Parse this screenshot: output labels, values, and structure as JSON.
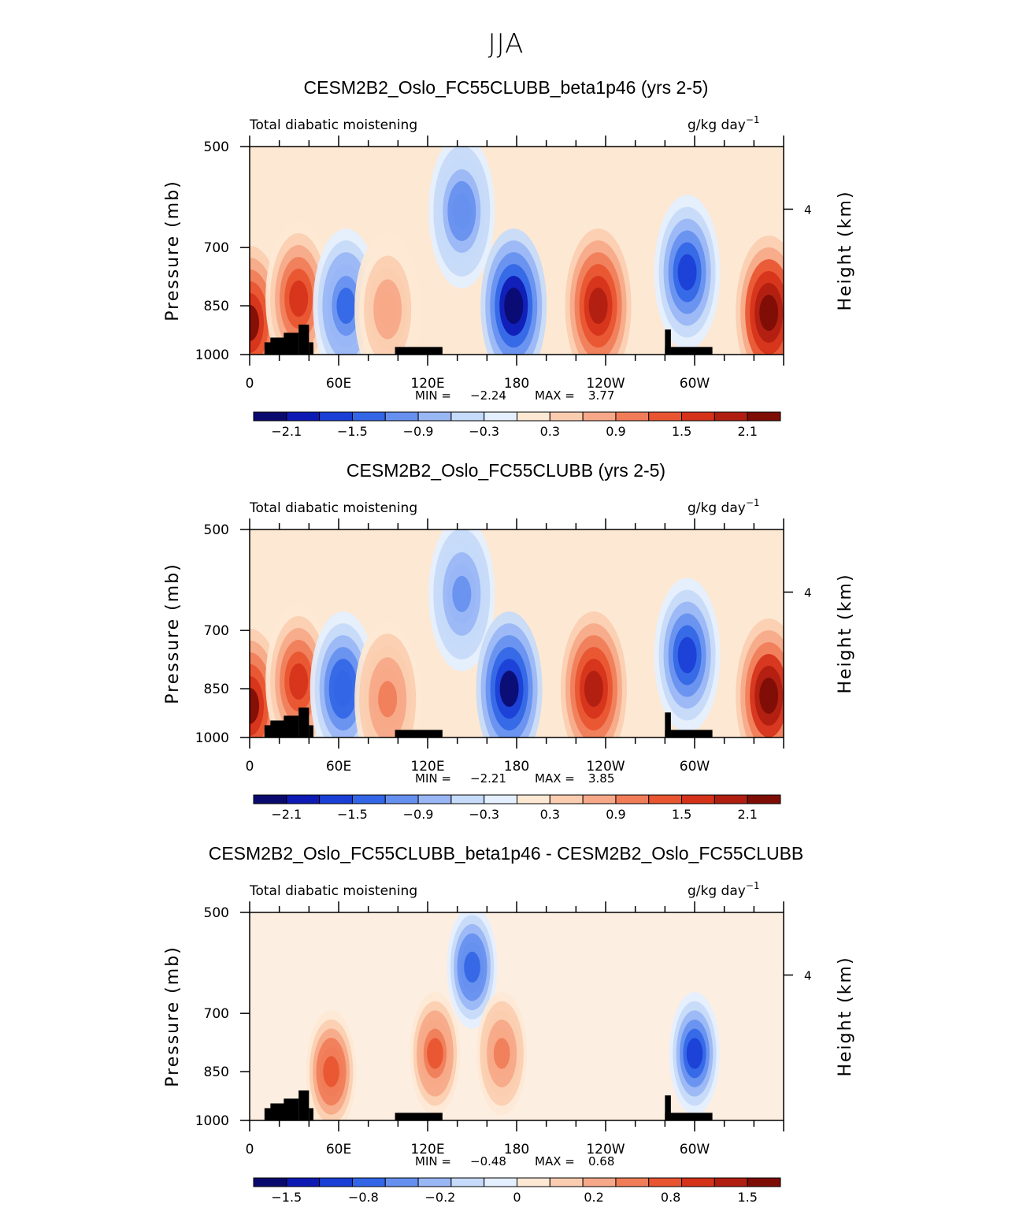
{
  "figure_title": "JJA",
  "panels": [
    {
      "title": "CESM2B2_Oslo_FC55CLUBB_beta1p46 (yrs 2-5)",
      "left_label": "Total diabatic moistening",
      "units": "g/kg day",
      "units_exp": "−1",
      "stats": {
        "min_label": "MIN =",
        "min": "−2.24",
        "max_label": "MAX =",
        "max": "3.77"
      }
    },
    {
      "title": "CESM2B2_Oslo_FC55CLUBB (yrs 2-5)",
      "left_label": "Total diabatic moistening",
      "units": "g/kg day",
      "units_exp": "−1",
      "stats": {
        "min_label": "MIN =",
        "min": "−2.21",
        "max_label": "MAX =",
        "max": "3.85"
      }
    },
    {
      "title": "CESM2B2_Oslo_FC55CLUBB_beta1p46 - CESM2B2_Oslo_FC55CLUBB",
      "left_label": "Total diabatic moistening",
      "units": "g/kg day",
      "units_exp": "−1",
      "stats": {
        "min_label": "MIN =",
        "min": "−0.48",
        "max_label": "MAX =",
        "max": "0.68"
      }
    }
  ],
  "axes": {
    "y_left_label": "Pressure (mb)",
    "y_right_label": "Height (km)",
    "y_ticks": [
      "500",
      "700",
      "850",
      "1000"
    ],
    "y_right_ticks": [
      "4"
    ],
    "x_ticks": [
      "0",
      "60E",
      "120E",
      "180",
      "120W",
      "60W"
    ]
  },
  "colorbar": {
    "colors": [
      "#0a0a6e",
      "#0d1ab4",
      "#1a3fd6",
      "#3366e6",
      "#6690ef",
      "#99b6f5",
      "#c6daf9",
      "#e4efff",
      "#fde8d4",
      "#fbcdb0",
      "#f6a888",
      "#f07d58",
      "#e85530",
      "#d5321a",
      "#b01e10",
      "#7d0d05"
    ],
    "labels_main": [
      "−2.1",
      "−1.5",
      "−0.9",
      "−0.3",
      "0.3",
      "0.9",
      "1.5",
      "2.1"
    ],
    "labels_diff": [
      "−1.5",
      "−0.8",
      "−0.2",
      "0",
      "0.2",
      "0.8",
      "1.5"
    ]
  },
  "chart_data": [
    {
      "type": "heatmap",
      "title": "CESM2B2_Oslo_FC55CLUBB_beta1p46 (yrs 2-5)",
      "x": "longitude (0 to 360)",
      "y": "pressure (mb)",
      "ylim": [
        1000,
        500
      ],
      "min": -2.24,
      "max": 3.77,
      "contour_levels": [
        -2.4,
        -2.1,
        -1.8,
        -1.5,
        -1.2,
        -0.9,
        -0.6,
        -0.3,
        0,
        0.3,
        0.6,
        0.9,
        1.2,
        1.5,
        1.8,
        2.1,
        2.4
      ],
      "blobs": [
        {
          "lon": 0,
          "p": 900,
          "value": 2.1
        },
        {
          "lon": 33,
          "p": 830,
          "value": 1.6
        },
        {
          "lon": 65,
          "p": 850,
          "value": -1.3
        },
        {
          "lon": 93,
          "p": 860,
          "value": 0.8
        },
        {
          "lon": 143,
          "p": 620,
          "value": -1.1
        },
        {
          "lon": 178,
          "p": 850,
          "value": -2.2
        },
        {
          "lon": 235,
          "p": 850,
          "value": 1.8
        },
        {
          "lon": 295,
          "p": 760,
          "value": -1.8
        },
        {
          "lon": 350,
          "p": 870,
          "value": 2.4
        }
      ]
    },
    {
      "type": "heatmap",
      "title": "CESM2B2_Oslo_FC55CLUBB (yrs 2-5)",
      "x": "longitude (0 to 360)",
      "y": "pressure (mb)",
      "ylim": [
        1000,
        500
      ],
      "min": -2.21,
      "max": 3.85,
      "blobs": [
        {
          "lon": 0,
          "p": 900,
          "value": 2.1
        },
        {
          "lon": 33,
          "p": 830,
          "value": 1.6
        },
        {
          "lon": 63,
          "p": 850,
          "value": -1.5
        },
        {
          "lon": 93,
          "p": 880,
          "value": 0.9
        },
        {
          "lon": 143,
          "p": 620,
          "value": -1.0
        },
        {
          "lon": 175,
          "p": 850,
          "value": -2.1
        },
        {
          "lon": 232,
          "p": 850,
          "value": 1.9
        },
        {
          "lon": 295,
          "p": 760,
          "value": -1.7
        },
        {
          "lon": 350,
          "p": 870,
          "value": 2.3
        }
      ]
    },
    {
      "type": "heatmap",
      "title": "CESM2B2_Oslo_FC55CLUBB_beta1p46 - CESM2B2_Oslo_FC55CLUBB",
      "x": "longitude (0 to 360)",
      "y": "pressure (mb)",
      "ylim": [
        1000,
        500
      ],
      "min": -0.48,
      "max": 0.68,
      "contour_levels": [
        -1.5,
        -1.2,
        -0.8,
        -0.5,
        -0.2,
        -0.1,
        0,
        0.1,
        0.2,
        0.5,
        0.8,
        1.2,
        1.5
      ],
      "blobs": [
        {
          "lon": 55,
          "p": 850,
          "value": 0.4
        },
        {
          "lon": 150,
          "p": 600,
          "value": -0.4
        },
        {
          "lon": 125,
          "p": 800,
          "value": 0.35
        },
        {
          "lon": 300,
          "p": 800,
          "value": -0.45
        },
        {
          "lon": 170,
          "p": 800,
          "value": 0.3
        }
      ]
    }
  ]
}
